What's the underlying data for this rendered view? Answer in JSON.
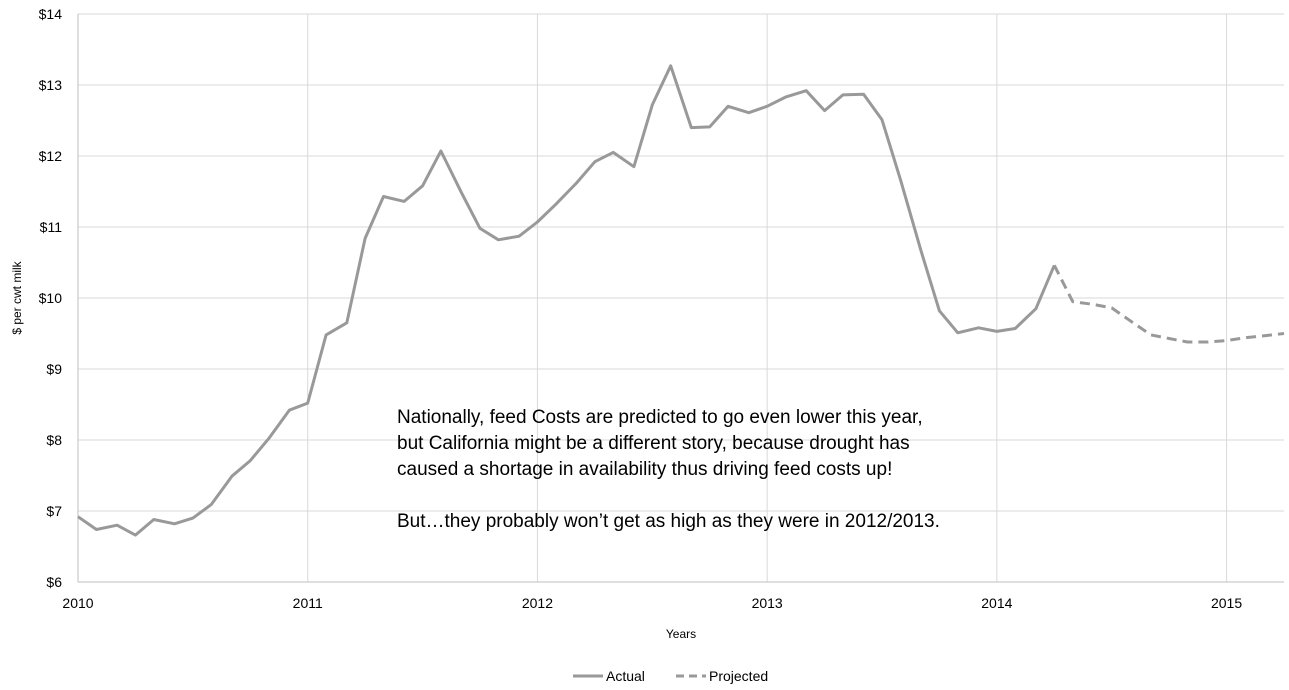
{
  "chart_data": {
    "type": "line",
    "xlabel": "Years",
    "ylabel": "$ per cwt milk",
    "xlim": [
      2010.0,
      2015.25
    ],
    "ylim": [
      6,
      14
    ],
    "grid": true,
    "legend_position": "bottom",
    "x_ticks": [
      "2010",
      "2011",
      "2012",
      "2013",
      "2014",
      "2015"
    ],
    "y_ticks": [
      "$6",
      "$7",
      "$8",
      "$9",
      "$10",
      "$11",
      "$12",
      "$13",
      "$14"
    ],
    "series": [
      {
        "name": "Actual",
        "style": "solid",
        "color": "#999999",
        "points": [
          [
            2010.0,
            6.92
          ],
          [
            2010.08,
            6.74
          ],
          [
            2010.17,
            6.8
          ],
          [
            2010.25,
            6.66
          ],
          [
            2010.33,
            6.88
          ],
          [
            2010.42,
            6.82
          ],
          [
            2010.5,
            6.9
          ],
          [
            2010.58,
            7.09
          ],
          [
            2010.67,
            7.49
          ],
          [
            2010.75,
            7.71
          ],
          [
            2010.83,
            8.02
          ],
          [
            2010.92,
            8.42
          ],
          [
            2011.0,
            8.52
          ],
          [
            2011.08,
            9.48
          ],
          [
            2011.17,
            9.65
          ],
          [
            2011.25,
            10.84
          ],
          [
            2011.33,
            11.43
          ],
          [
            2011.42,
            11.36
          ],
          [
            2011.5,
            11.58
          ],
          [
            2011.58,
            12.07
          ],
          [
            2011.67,
            11.48
          ],
          [
            2011.75,
            10.98
          ],
          [
            2011.83,
            10.82
          ],
          [
            2011.92,
            10.87
          ],
          [
            2012.0,
            11.07
          ],
          [
            2012.08,
            11.32
          ],
          [
            2012.17,
            11.62
          ],
          [
            2012.25,
            11.92
          ],
          [
            2012.33,
            12.05
          ],
          [
            2012.42,
            11.85
          ],
          [
            2012.5,
            12.72
          ],
          [
            2012.58,
            13.27
          ],
          [
            2012.67,
            12.4
          ],
          [
            2012.75,
            12.41
          ],
          [
            2012.83,
            12.7
          ],
          [
            2012.92,
            12.61
          ],
          [
            2013.0,
            12.7
          ],
          [
            2013.08,
            12.83
          ],
          [
            2013.17,
            12.92
          ],
          [
            2013.25,
            12.64
          ],
          [
            2013.33,
            12.86
          ],
          [
            2013.42,
            12.87
          ],
          [
            2013.5,
            12.51
          ],
          [
            2013.58,
            11.67
          ],
          [
            2013.67,
            10.66
          ],
          [
            2013.75,
            9.82
          ],
          [
            2013.83,
            9.51
          ],
          [
            2013.92,
            9.58
          ],
          [
            2014.0,
            9.53
          ],
          [
            2014.08,
            9.57
          ],
          [
            2014.17,
            9.85
          ],
          [
            2014.25,
            10.46
          ]
        ]
      },
      {
        "name": "Projected",
        "style": "dashed",
        "color": "#999999",
        "points": [
          [
            2014.25,
            10.46
          ],
          [
            2014.33,
            9.95
          ],
          [
            2014.42,
            9.91
          ],
          [
            2014.5,
            9.86
          ],
          [
            2014.58,
            9.68
          ],
          [
            2014.67,
            9.48
          ],
          [
            2014.75,
            9.43
          ],
          [
            2014.83,
            9.38
          ],
          [
            2014.92,
            9.38
          ],
          [
            2015.0,
            9.4
          ],
          [
            2015.08,
            9.44
          ],
          [
            2015.17,
            9.47
          ],
          [
            2015.25,
            9.5
          ]
        ]
      }
    ],
    "annotation": {
      "lines": [
        "Nationally, feed Costs are predicted to go even lower this year,",
        "but California might be a different story, because drought has",
        "caused a shortage in availability thus driving feed costs up!"
      ],
      "footnote": "But…they probably won’t get as high as they were in 2012/2013."
    }
  }
}
